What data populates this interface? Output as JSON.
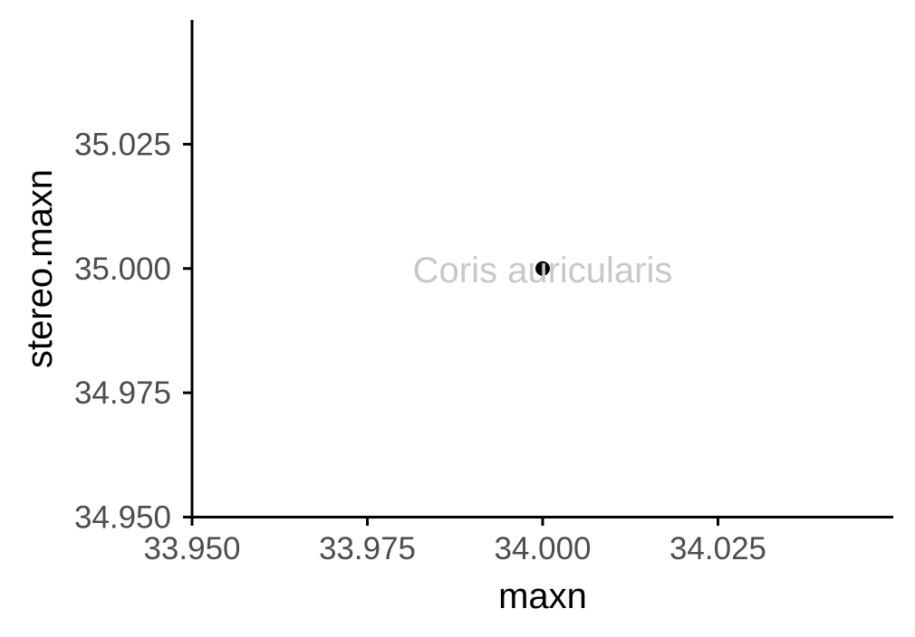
{
  "chart_data": {
    "type": "scatter",
    "xlabel": "maxn",
    "ylabel": "stereo.maxn",
    "xlim": [
      33.95,
      34.05
    ],
    "ylim": [
      34.95,
      35.05
    ],
    "x_ticks": [
      "33.950",
      "33.975",
      "34.000",
      "34.025"
    ],
    "y_ticks": [
      "34.950",
      "34.975",
      "35.000",
      "35.025"
    ],
    "grid": false,
    "legend": "none",
    "points": [
      {
        "x": 34.0,
        "y": 35.0,
        "label": "Coris auricularis",
        "color": "#000000"
      }
    ],
    "label_color": "#c8c8c8"
  }
}
